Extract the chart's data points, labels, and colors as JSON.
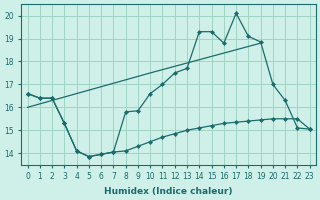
{
  "xlabel": "Humidex (Indice chaleur)",
  "background_color": "#cff0e8",
  "grid_color": "#a0d4c4",
  "line_color": "#1a6b6b",
  "xlim": [
    -0.5,
    23.5
  ],
  "ylim": [
    13.5,
    20.5
  ],
  "yticks": [
    14,
    15,
    16,
    17,
    18,
    19,
    20
  ],
  "xticks": [
    0,
    1,
    2,
    3,
    4,
    5,
    6,
    7,
    8,
    9,
    10,
    11,
    12,
    13,
    14,
    15,
    16,
    17,
    18,
    19,
    20,
    21,
    22,
    23
  ],
  "line1_x": [
    0,
    1,
    2,
    3,
    4,
    5,
    6,
    7,
    8,
    9,
    10,
    11,
    12,
    13,
    14,
    15,
    16,
    17,
    18,
    19,
    20,
    21,
    22,
    23
  ],
  "line1_y": [
    16.6,
    16.4,
    16.4,
    15.3,
    14.1,
    13.85,
    13.95,
    14.05,
    15.8,
    15.85,
    16.6,
    17.0,
    17.5,
    17.7,
    19.3,
    19.3,
    18.8,
    20.1,
    19.1,
    18.85,
    17.0,
    16.3,
    15.1,
    15.05
  ],
  "line2_x": [
    0,
    1,
    2,
    3,
    4,
    5,
    6,
    7,
    8,
    9,
    10,
    11,
    12,
    13,
    14,
    15,
    16,
    17,
    18,
    19,
    20,
    21,
    22,
    23
  ],
  "line2_y": [
    16.6,
    16.4,
    16.4,
    15.3,
    14.1,
    13.85,
    13.95,
    14.05,
    14.1,
    14.3,
    14.5,
    14.7,
    14.85,
    15.0,
    15.1,
    15.2,
    15.3,
    15.35,
    15.4,
    15.45,
    15.5,
    15.5,
    15.5,
    15.05
  ],
  "line3_x": [
    0,
    10,
    19
  ],
  "line3_y": [
    16.0,
    17.5,
    18.8
  ]
}
